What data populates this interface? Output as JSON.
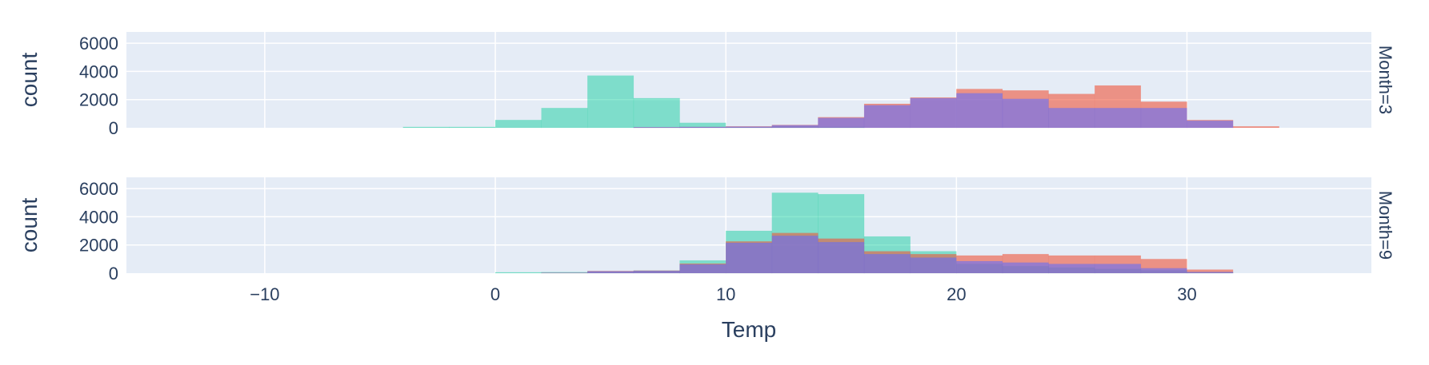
{
  "chart_data": [
    {
      "type": "bar",
      "title": "",
      "facet_label": "Month=3",
      "xlabel": "",
      "ylabel": "count",
      "xlim": [
        -16,
        38
      ],
      "ylim": [
        0,
        6800
      ],
      "yticks": [
        0,
        2000,
        4000,
        6000
      ],
      "xticks": [],
      "bin_width": 2,
      "overlay": true,
      "grid": true,
      "series": [
        {
          "color": "#00cc96",
          "opacity": 0.45,
          "bins": [
            [
              -4,
              60
            ],
            [
              -2,
              60
            ],
            [
              0,
              550
            ],
            [
              2,
              1400
            ],
            [
              4,
              3700
            ],
            [
              6,
              2100
            ],
            [
              8,
              350
            ],
            [
              10,
              60
            ],
            [
              12,
              80
            ],
            [
              14,
              60
            ]
          ]
        },
        {
          "color": "#ef553b",
          "opacity": 0.6,
          "bins": [
            [
              6,
              40
            ],
            [
              8,
              60
            ],
            [
              10,
              100
            ],
            [
              12,
              200
            ],
            [
              14,
              750
            ],
            [
              16,
              1700
            ],
            [
              18,
              2150
            ],
            [
              20,
              2750
            ],
            [
              22,
              2650
            ],
            [
              24,
              2400
            ],
            [
              26,
              3000
            ],
            [
              28,
              1850
            ],
            [
              30,
              550
            ],
            [
              32,
              100
            ]
          ]
        },
        {
          "color": "#636efa",
          "opacity": 0.6,
          "bins": [
            [
              6,
              40
            ],
            [
              8,
              60
            ],
            [
              10,
              80
            ],
            [
              12,
              180
            ],
            [
              14,
              700
            ],
            [
              16,
              1600
            ],
            [
              18,
              2100
            ],
            [
              20,
              2450
            ],
            [
              22,
              2050
            ],
            [
              24,
              1400
            ],
            [
              26,
              1400
            ],
            [
              28,
              1400
            ],
            [
              30,
              500
            ]
          ]
        }
      ]
    },
    {
      "type": "bar",
      "title": "",
      "facet_label": "Month=9",
      "xlabel": "Temp",
      "ylabel": "count",
      "xlim": [
        -16,
        38
      ],
      "ylim": [
        0,
        6800
      ],
      "yticks": [
        0,
        2000,
        4000,
        6000
      ],
      "xticks": [
        -10,
        0,
        10,
        20,
        30
      ],
      "xtick_labels": [
        "−10",
        "0",
        "10",
        "20",
        "30"
      ],
      "bin_width": 2,
      "overlay": true,
      "grid": true,
      "series": [
        {
          "color": "#00cc96",
          "opacity": 0.45,
          "bins": [
            [
              0,
              60
            ],
            [
              2,
              70
            ],
            [
              4,
              130
            ],
            [
              6,
              180
            ],
            [
              8,
              900
            ],
            [
              10,
              3000
            ],
            [
              12,
              5700
            ],
            [
              14,
              5600
            ],
            [
              16,
              2600
            ],
            [
              18,
              1550
            ],
            [
              20,
              650
            ],
            [
              22,
              500
            ],
            [
              24,
              400
            ],
            [
              26,
              300
            ],
            [
              28,
              200
            ],
            [
              30,
              80
            ]
          ]
        },
        {
          "color": "#ef553b",
          "opacity": 0.6,
          "bins": [
            [
              2,
              30
            ],
            [
              4,
              150
            ],
            [
              6,
              180
            ],
            [
              8,
              680
            ],
            [
              10,
              2250
            ],
            [
              12,
              2850
            ],
            [
              14,
              2450
            ],
            [
              16,
              1550
            ],
            [
              18,
              1350
            ],
            [
              20,
              1250
            ],
            [
              22,
              1350
            ],
            [
              24,
              1250
            ],
            [
              26,
              1250
            ],
            [
              28,
              1000
            ],
            [
              30,
              250
            ]
          ]
        },
        {
          "color": "#636efa",
          "opacity": 0.6,
          "bins": [
            [
              2,
              20
            ],
            [
              4,
              130
            ],
            [
              6,
              160
            ],
            [
              8,
              620
            ],
            [
              10,
              2150
            ],
            [
              12,
              2650
            ],
            [
              14,
              2200
            ],
            [
              16,
              1350
            ],
            [
              18,
              1100
            ],
            [
              20,
              850
            ],
            [
              22,
              750
            ],
            [
              24,
              650
            ],
            [
              26,
              650
            ],
            [
              28,
              350
            ],
            [
              30,
              80
            ]
          ]
        }
      ]
    }
  ]
}
